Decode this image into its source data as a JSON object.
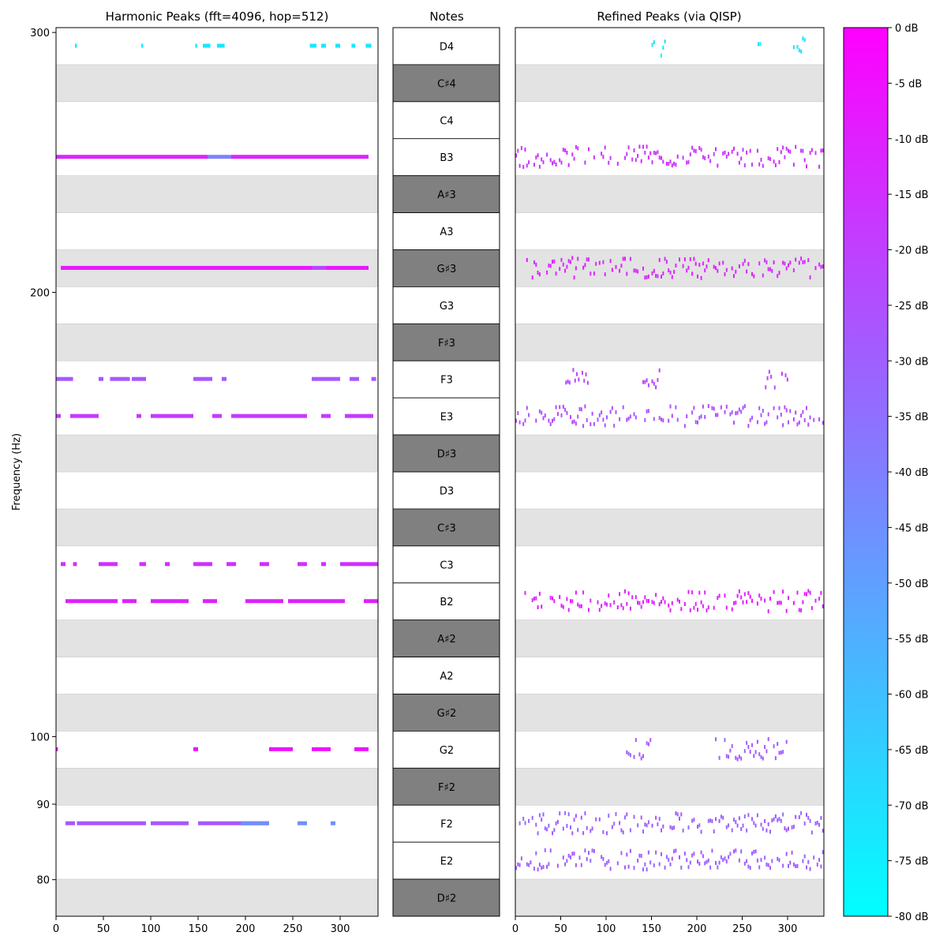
{
  "colors": {
    "stripe_light": "#e3e3e3",
    "note_black_key": "#808080",
    "axis": "#000000",
    "cmap_low": "#00ffff",
    "cmap_high": "#ff00ff"
  },
  "chart_data": {
    "type": "heatmap",
    "time_range": [
      0,
      340
    ],
    "x_ticks": [
      0,
      50,
      100,
      150,
      200,
      250,
      300
    ],
    "y_label": "Frequency (Hz)",
    "y_ticks": [
      80,
      90,
      100,
      200,
      300
    ],
    "colorbar": {
      "range_db": [
        -80,
        0
      ],
      "tick_labels": [
        "0 dB",
        "-5 dB",
        "-10 dB",
        "-15 dB",
        "-20 dB",
        "-25 dB",
        "-30 dB",
        "-35 dB",
        "-40 dB",
        "-45 dB",
        "-50 dB",
        "-55 dB",
        "-60 dB",
        "-65 dB",
        "-70 dB",
        "-75 dB",
        "-80 dB"
      ]
    },
    "notes": [
      {
        "name": "D4",
        "hz": 293.66,
        "sharp": false
      },
      {
        "name": "C♯4",
        "hz": 277.18,
        "sharp": true
      },
      {
        "name": "C4",
        "hz": 261.63,
        "sharp": false
      },
      {
        "name": "B3",
        "hz": 246.94,
        "sharp": false
      },
      {
        "name": "A♯3",
        "hz": 233.08,
        "sharp": true
      },
      {
        "name": "A3",
        "hz": 220.0,
        "sharp": false
      },
      {
        "name": "G♯3",
        "hz": 207.65,
        "sharp": true
      },
      {
        "name": "G3",
        "hz": 196.0,
        "sharp": false
      },
      {
        "name": "F♯3",
        "hz": 185.0,
        "sharp": true
      },
      {
        "name": "F3",
        "hz": 174.61,
        "sharp": false
      },
      {
        "name": "E3",
        "hz": 164.81,
        "sharp": false
      },
      {
        "name": "D♯3",
        "hz": 155.56,
        "sharp": true
      },
      {
        "name": "D3",
        "hz": 146.83,
        "sharp": false
      },
      {
        "name": "C♯3",
        "hz": 138.59,
        "sharp": true
      },
      {
        "name": "C3",
        "hz": 130.81,
        "sharp": false
      },
      {
        "name": "B2",
        "hz": 123.47,
        "sharp": false
      },
      {
        "name": "A♯2",
        "hz": 116.54,
        "sharp": true
      },
      {
        "name": "A2",
        "hz": 110.0,
        "sharp": false
      },
      {
        "name": "G♯2",
        "hz": 103.83,
        "sharp": true
      },
      {
        "name": "G2",
        "hz": 98.0,
        "sharp": false
      },
      {
        "name": "F♯2",
        "hz": 92.5,
        "sharp": true
      },
      {
        "name": "F2",
        "hz": 87.31,
        "sharp": false
      },
      {
        "name": "E2",
        "hz": 82.41,
        "sharp": false
      },
      {
        "name": "D♯2",
        "hz": 77.78,
        "sharp": true
      }
    ],
    "panels": [
      {
        "title": "Harmonic Peaks (fft=4096, hop=512)",
        "tracks": [
          {
            "note": "D4",
            "db": -72,
            "ranges": [
              [
                20,
                22
              ],
              [
                90,
                92
              ],
              [
                147,
                149
              ],
              [
                155,
                163
              ],
              [
                170,
                178
              ],
              [
                268,
                275
              ],
              [
                280,
                285
              ],
              [
                295,
                300
              ],
              [
                312,
                316
              ],
              [
                327,
                333
              ]
            ]
          },
          {
            "note": "B3",
            "db": -12,
            "ranges": [
              [
                0,
                160
              ],
              [
                185,
                330
              ]
            ]
          },
          {
            "note": "B3",
            "db": -40,
            "ranges": [
              [
                160,
                185
              ]
            ]
          },
          {
            "note": "G♯3",
            "db": -8,
            "ranges": [
              [
                5,
                270
              ],
              [
                285,
                330
              ]
            ]
          },
          {
            "note": "G♯3",
            "db": -22,
            "ranges": [
              [
                270,
                285
              ]
            ]
          },
          {
            "note": "F3",
            "db": -28,
            "ranges": [
              [
                0,
                18
              ],
              [
                45,
                50
              ],
              [
                57,
                78
              ],
              [
                80,
                95
              ],
              [
                145,
                165
              ],
              [
                175,
                180
              ],
              [
                270,
                300
              ],
              [
                310,
                320
              ],
              [
                333,
                338
              ]
            ]
          },
          {
            "note": "E3",
            "db": -18,
            "ranges": [
              [
                0,
                5
              ],
              [
                15,
                45
              ],
              [
                85,
                90
              ],
              [
                100,
                145
              ],
              [
                165,
                175
              ],
              [
                185,
                230
              ],
              [
                230,
                265
              ],
              [
                280,
                290
              ],
              [
                305,
                335
              ]
            ]
          },
          {
            "note": "C3",
            "db": -15,
            "ranges": [
              [
                5,
                10
              ],
              [
                18,
                22
              ],
              [
                45,
                65
              ],
              [
                88,
                95
              ],
              [
                115,
                120
              ],
              [
                145,
                165
              ],
              [
                180,
                190
              ],
              [
                215,
                225
              ],
              [
                255,
                265
              ],
              [
                280,
                285
              ],
              [
                300,
                340
              ]
            ]
          },
          {
            "note": "B2",
            "db": -10,
            "ranges": [
              [
                10,
                65
              ],
              [
                70,
                85
              ],
              [
                100,
                140
              ],
              [
                155,
                170
              ],
              [
                200,
                240
              ],
              [
                245,
                305
              ],
              [
                325,
                340
              ]
            ]
          },
          {
            "note": "G2",
            "db": -6,
            "ranges": [
              [
                0,
                2
              ],
              [
                145,
                150
              ],
              [
                225,
                250
              ],
              [
                270,
                290
              ],
              [
                315,
                330
              ]
            ]
          },
          {
            "note": "F2",
            "db": -28,
            "ranges": [
              [
                10,
                20
              ],
              [
                22,
                60
              ],
              [
                60,
                95
              ],
              [
                100,
                140
              ],
              [
                150,
                200
              ],
              [
                200,
                225
              ]
            ]
          },
          {
            "note": "F2",
            "db": -45,
            "ranges": [
              [
                195,
                225
              ],
              [
                255,
                265
              ],
              [
                290,
                295
              ]
            ]
          }
        ]
      },
      {
        "title": "Refined Peaks (via QISP)",
        "tracks": [
          {
            "note": "D4",
            "db": -72,
            "ranges": [
              [
                20,
                22
              ],
              [
                150,
                165
              ],
              [
                265,
                275
              ],
              [
                300,
                320
              ]
            ]
          },
          {
            "note": "B3",
            "db": -16,
            "ranges": [
              [
                0,
                340
              ]
            ]
          },
          {
            "note": "G♯3",
            "db": -12,
            "ranges": [
              [
                10,
                340
              ]
            ]
          },
          {
            "note": "F3",
            "db": -22,
            "ranges": [
              [
                55,
                85
              ],
              [
                140,
                160
              ],
              [
                275,
                300
              ]
            ]
          },
          {
            "note": "E3",
            "db": -25,
            "ranges": [
              [
                0,
                340
              ]
            ]
          },
          {
            "note": "B2",
            "db": -10,
            "ranges": [
              [
                10,
                340
              ]
            ]
          },
          {
            "note": "G2",
            "db": -28,
            "ranges": [
              [
                120,
                150
              ],
              [
                220,
                300
              ]
            ]
          },
          {
            "note": "F2",
            "db": -30,
            "ranges": [
              [
                0,
                340
              ]
            ]
          },
          {
            "note": "E2",
            "db": -30,
            "ranges": [
              [
                0,
                340
              ]
            ]
          }
        ]
      }
    ],
    "notes_panel_title": "Notes"
  }
}
